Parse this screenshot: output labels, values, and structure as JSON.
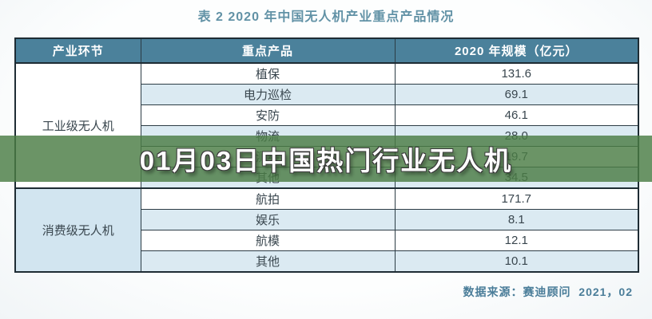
{
  "page": {
    "title": "表 2  2020 年中国无人机产业重点产品情况",
    "source_note": "数据来源：赛迪顾问  2021，02"
  },
  "overlay": {
    "text": "01月03日中国热门行业无人机",
    "band_color": "#4a7d44",
    "text_color": "#ffffff"
  },
  "table": {
    "headers": [
      "产业环节",
      "重点产品",
      "2020 年规模（亿元）"
    ],
    "sections": [
      {
        "category": "工业级无人机",
        "rows": [
          {
            "product": "植保",
            "value": "131.6"
          },
          {
            "product": "电力巡检",
            "value": "69.1"
          },
          {
            "product": "安防",
            "value": "46.1"
          },
          {
            "product": "物流",
            "value": "28.0"
          },
          {
            "product": "测绘",
            "value": "19.7"
          },
          {
            "product": "其他",
            "value": "34.5"
          }
        ]
      },
      {
        "category": "消费级无人机",
        "rows": [
          {
            "product": "航拍",
            "value": "171.7"
          },
          {
            "product": "娱乐",
            "value": "8.1"
          },
          {
            "product": "航模",
            "value": "12.1"
          },
          {
            "product": "其他",
            "value": "10.1"
          }
        ]
      }
    ]
  },
  "colors": {
    "header_bg": "#4b819b",
    "header_text": "#ffffff",
    "row_alt_bg": "#dbeaf2",
    "row_bg": "#ffffff",
    "consumer_category_bg": "#d2e5f0",
    "border": "#1e2c34",
    "title_text": "#6292a6",
    "source_text": "#4a7d99",
    "cell_text": "#39464e"
  },
  "chart_data": {
    "type": "table",
    "title": "表 2  2020 年中国无人机产业重点产品情况",
    "columns": [
      "产业环节",
      "重点产品",
      "2020 年规模（亿元）"
    ],
    "rows": [
      [
        "工业级无人机",
        "植保",
        131.6
      ],
      [
        "工业级无人机",
        "电力巡检",
        69.1
      ],
      [
        "工业级无人机",
        "安防",
        46.1
      ],
      [
        "工业级无人机",
        "物流",
        28.0
      ],
      [
        "工业级无人机",
        "测绘",
        19.7
      ],
      [
        "工业级无人机",
        "其他",
        34.5
      ],
      [
        "消费级无人机",
        "航拍",
        171.7
      ],
      [
        "消费级无人机",
        "娱乐",
        8.1
      ],
      [
        "消费级无人机",
        "航模",
        12.1
      ],
      [
        "消费级无人机",
        "其他",
        10.1
      ]
    ],
    "source": "数据来源：赛迪顾问  2021，02"
  }
}
